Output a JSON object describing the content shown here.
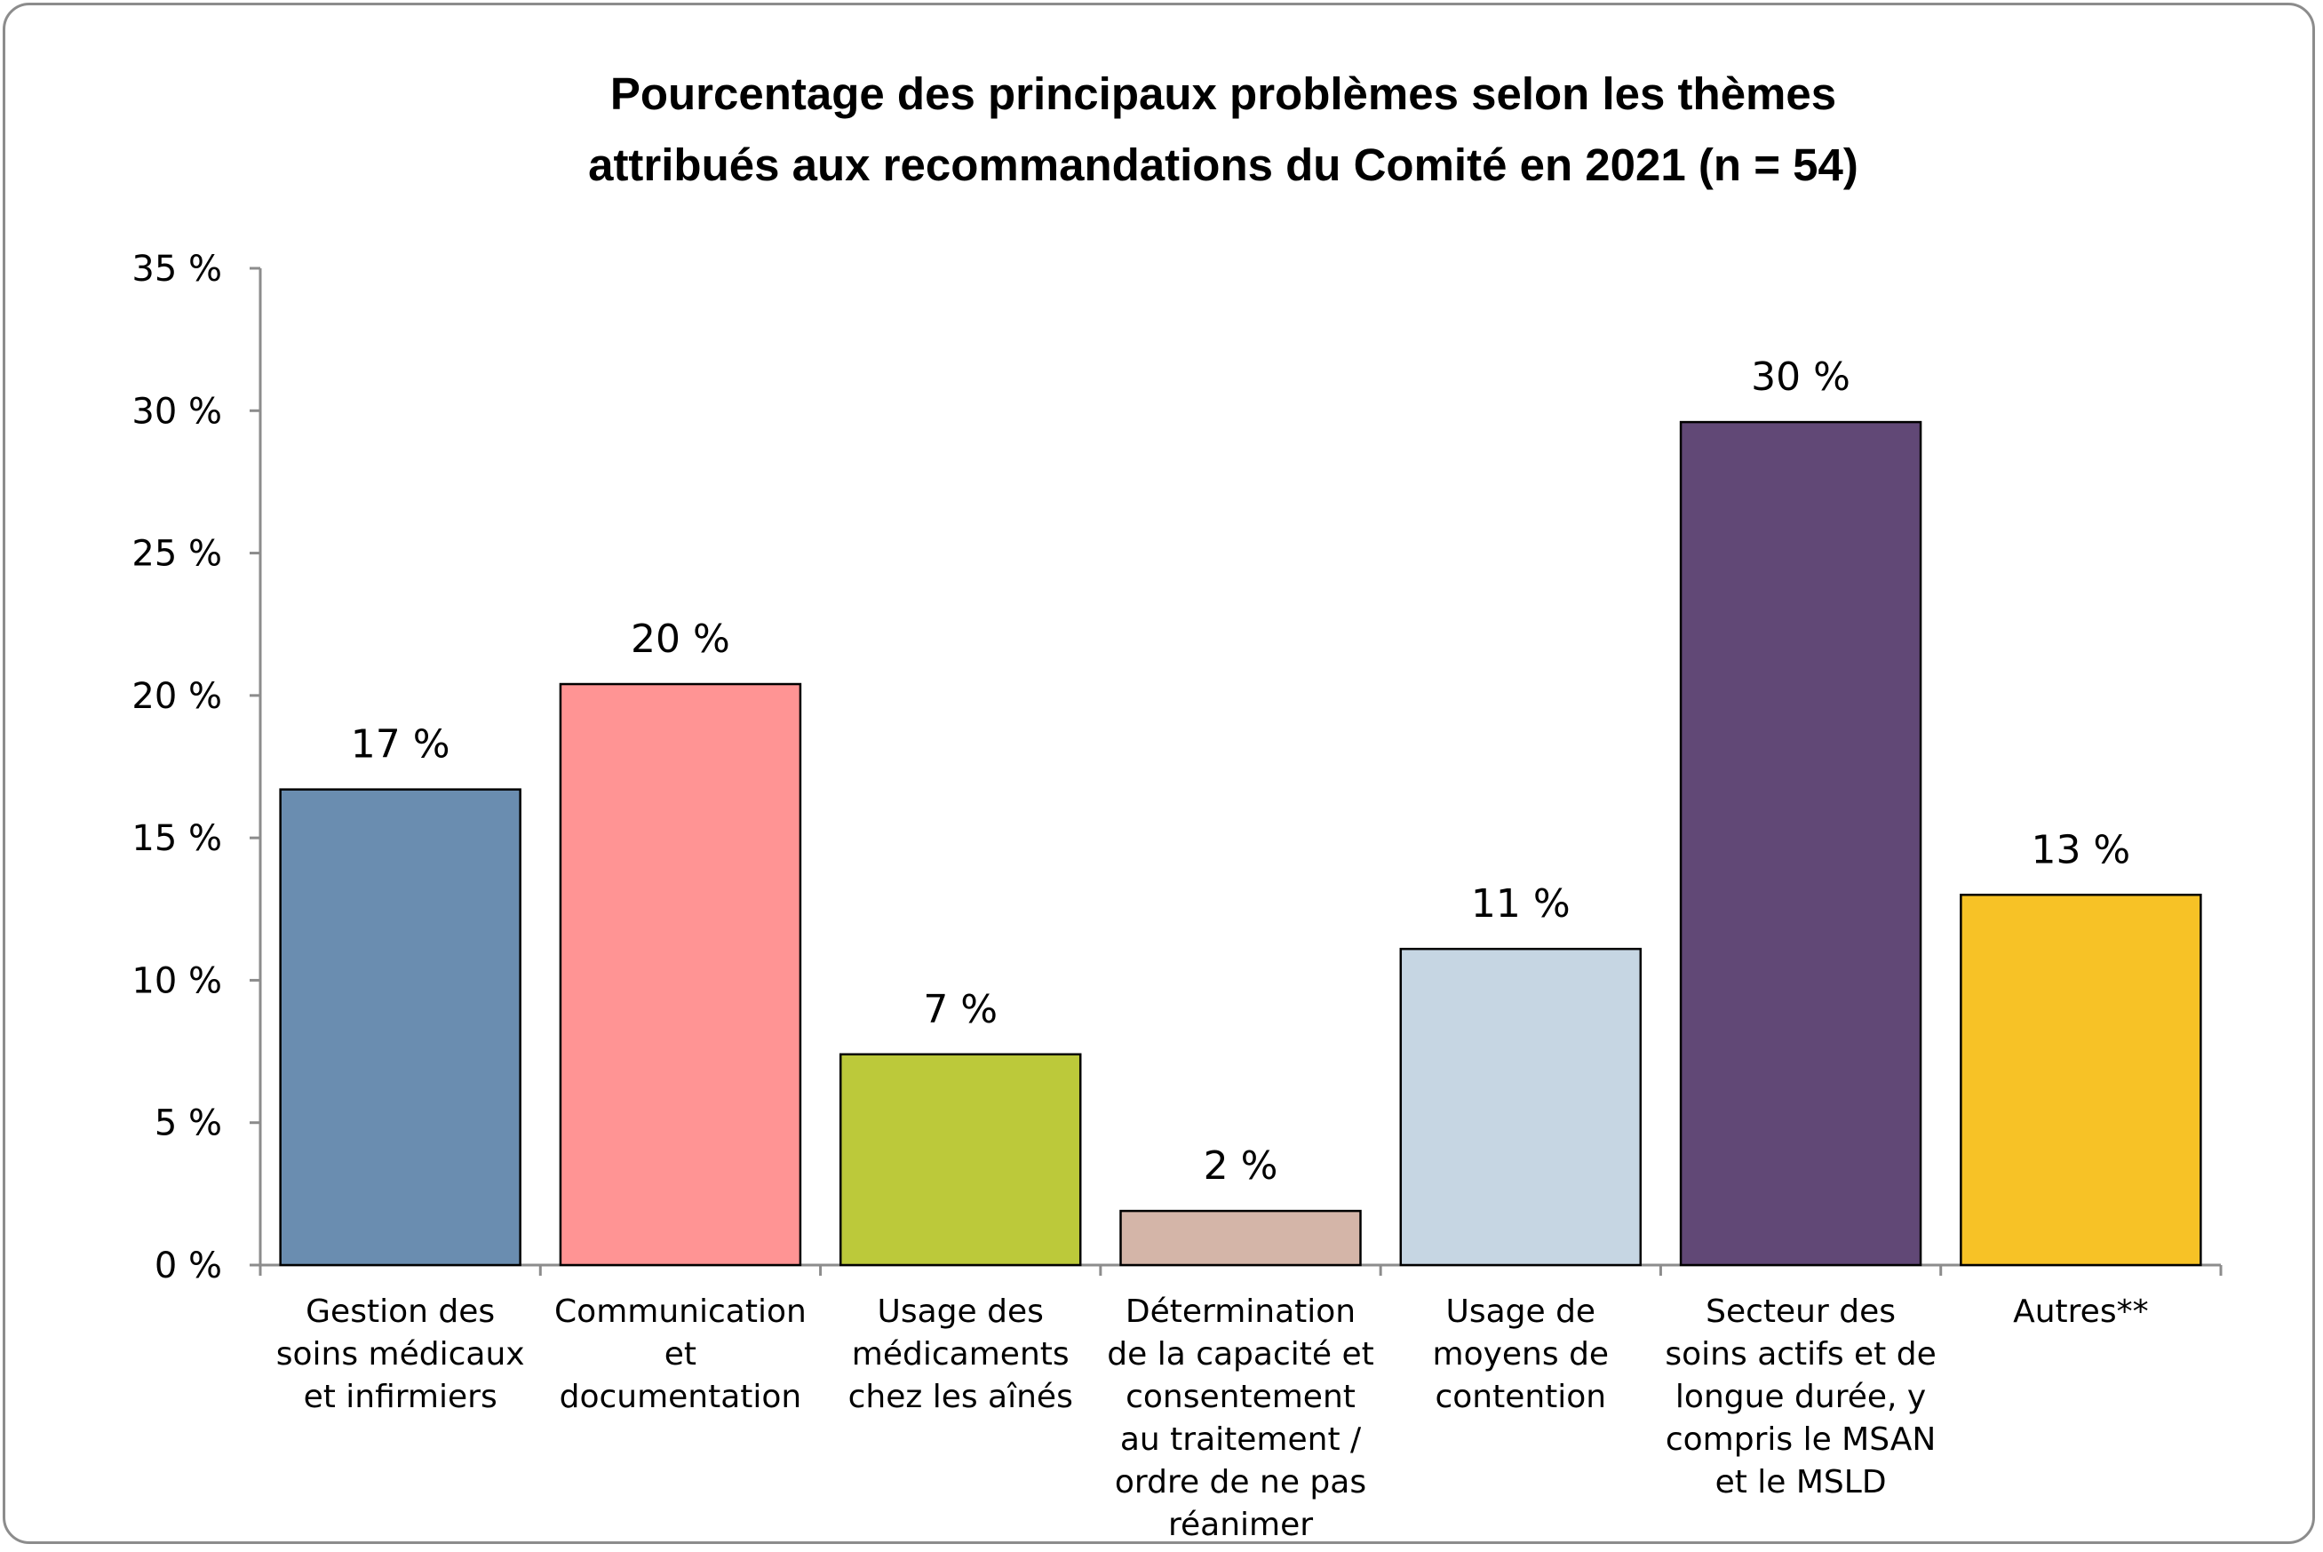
{
  "chart_data": {
    "type": "bar",
    "title_lines": [
      "Pourcentage des principaux problèmes selon les thèmes",
      "attribués aux recommandations du Comité en 2021 (n = 54)"
    ],
    "categories": [
      [
        "Gestion des",
        "soins médicaux",
        "et infirmiers"
      ],
      [
        "Communication",
        "et",
        "documentation"
      ],
      [
        "Usage des",
        "médicaments",
        "chez les aînés"
      ],
      [
        "Détermination",
        "de la capacité et",
        "consentement",
        "au traitement /",
        "ordre de ne pas",
        "réanimer"
      ],
      [
        "Usage de",
        "moyens de",
        "contention"
      ],
      [
        "Secteur des",
        "soins actifs et de",
        "longue durée, y",
        "compris le MSAN",
        "et le MSLD"
      ],
      [
        "Autres**"
      ]
    ],
    "values": [
      16.7,
      20.4,
      7.4,
      1.9,
      11.1,
      29.6,
      13.0
    ],
    "data_labels": [
      "17 %",
      "20 %",
      "7 %",
      "2 %",
      "11 %",
      "30 %",
      "13 %"
    ],
    "colors": [
      "#6a8db0",
      "#ff9494",
      "#bcc93a",
      "#d4b5a8",
      "#c6d6e3",
      "#614876",
      "#f7c226"
    ],
    "yticks": [
      0,
      5,
      10,
      15,
      20,
      25,
      30,
      35
    ],
    "ytick_labels": [
      "0 %",
      "5 %",
      "10 %",
      "15 %",
      "20 %",
      "25 %",
      "30 %",
      "35 %"
    ],
    "ylim": [
      0,
      35
    ],
    "grid": false,
    "legend": "none"
  }
}
